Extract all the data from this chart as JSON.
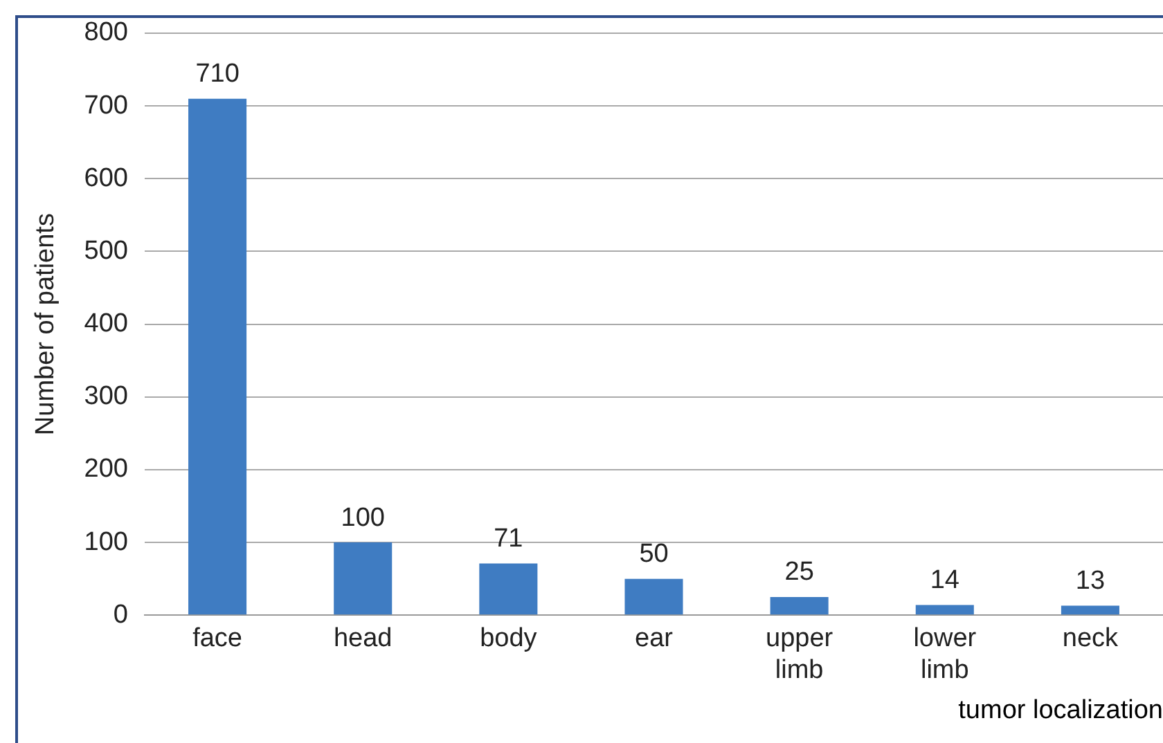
{
  "chart_data": {
    "type": "bar",
    "xlabel": "tumor localization",
    "ylabel": "Number of patients",
    "categories": [
      "face",
      "head",
      "body",
      "ear",
      "upper limb",
      "lower limb",
      "neck"
    ],
    "values": [
      710,
      100,
      71,
      50,
      25,
      14,
      13
    ],
    "color": "#3f7cc2",
    "ylim": [
      0,
      800
    ],
    "yticks": [
      0,
      100,
      200,
      300,
      400,
      500,
      600,
      700,
      800
    ],
    "grid": "y",
    "data_labels": true,
    "legend": false
  }
}
